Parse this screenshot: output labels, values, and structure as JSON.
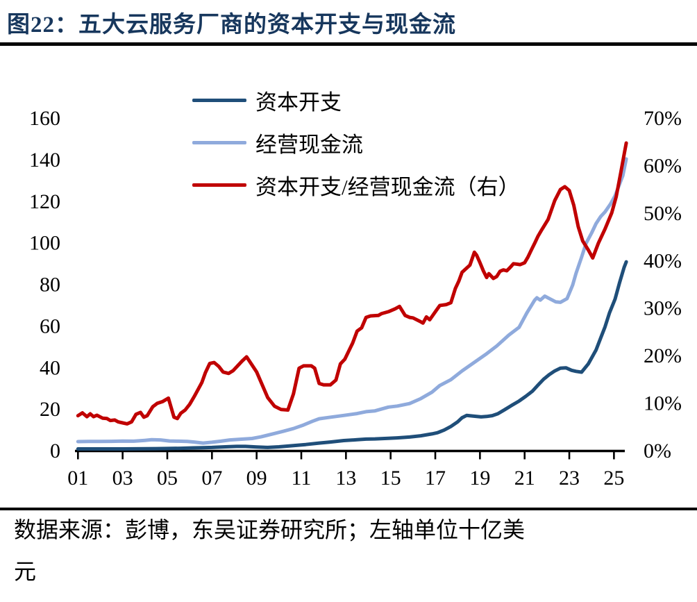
{
  "header": {
    "figure_title": "图22：五大云服务厂商的资本开支与现金流"
  },
  "legend": {
    "items": [
      {
        "label": "资本开支",
        "color": "#1F4E79"
      },
      {
        "label": "经营现金流",
        "color": "#8FAADC"
      },
      {
        "label": "资本开支/经营现金流（右）",
        "color": "#C00000"
      }
    ]
  },
  "chart_data": {
    "type": "line",
    "title": "图22：五大云服务厂商的资本开支与现金流",
    "grid": false,
    "legend_position": "top-center",
    "x_axis": {
      "range": [
        2000.9,
        2025.6
      ],
      "ticks": [
        {
          "label": "01",
          "year": 2001
        },
        {
          "label": "03",
          "year": 2003
        },
        {
          "label": "05",
          "year": 2005
        },
        {
          "label": "07",
          "year": 2007
        },
        {
          "label": "09",
          "year": 2009
        },
        {
          "label": "11",
          "year": 2011
        },
        {
          "label": "13",
          "year": 2013
        },
        {
          "label": "15",
          "year": 2015
        },
        {
          "label": "17",
          "year": 2017
        },
        {
          "label": "19",
          "year": 2019
        },
        {
          "label": "21",
          "year": 2021
        },
        {
          "label": "23",
          "year": 2023
        },
        {
          "label": "25",
          "year": 2025
        }
      ]
    },
    "left_axis": {
      "range": [
        0,
        160
      ],
      "ticks": [
        0,
        20,
        40,
        60,
        80,
        100,
        120,
        140,
        160
      ],
      "unit_note": "左轴单位十亿美元"
    },
    "right_axis": {
      "range": [
        0,
        70
      ],
      "ticks": [
        0,
        10,
        20,
        30,
        40,
        50,
        60,
        70
      ],
      "format": "percent"
    },
    "series": [
      {
        "name": "资本开支",
        "axis": "left",
        "color": "#1F4E79",
        "points": [
          [
            2001.0,
            0.5
          ],
          [
            2001.5,
            0.5
          ],
          [
            2002.0,
            0.5
          ],
          [
            2002.5,
            0.5
          ],
          [
            2003.0,
            0.5
          ],
          [
            2003.5,
            0.55
          ],
          [
            2004.0,
            0.6
          ],
          [
            2004.5,
            0.65
          ],
          [
            2005.0,
            0.7
          ],
          [
            2005.6,
            0.8
          ],
          [
            2006.2,
            1.0
          ],
          [
            2006.6,
            1.1
          ],
          [
            2007.0,
            1.2
          ],
          [
            2007.6,
            1.5
          ],
          [
            2008.1,
            1.7
          ],
          [
            2008.5,
            1.7
          ],
          [
            2009.0,
            1.4
          ],
          [
            2009.5,
            1.2
          ],
          [
            2010.0,
            1.5
          ],
          [
            2010.65,
            2.1
          ],
          [
            2011.2,
            2.6
          ],
          [
            2011.8,
            3.3
          ],
          [
            2012.3,
            3.8
          ],
          [
            2012.9,
            4.5
          ],
          [
            2013.5,
            4.9
          ],
          [
            2013.9,
            5.2
          ],
          [
            2014.3,
            5.3
          ],
          [
            2014.9,
            5.6
          ],
          [
            2015.3,
            5.8
          ],
          [
            2015.85,
            6.2
          ],
          [
            2016.35,
            6.8
          ],
          [
            2016.85,
            7.7
          ],
          [
            2017.1,
            8.3
          ],
          [
            2017.4,
            9.6
          ],
          [
            2017.7,
            11.3
          ],
          [
            2018.0,
            13.5
          ],
          [
            2018.2,
            15.5
          ],
          [
            2018.4,
            16.6
          ],
          [
            2018.7,
            16.3
          ],
          [
            2019.05,
            15.9
          ],
          [
            2019.3,
            16.1
          ],
          [
            2019.55,
            16.5
          ],
          [
            2019.8,
            17.4
          ],
          [
            2020.1,
            19.3
          ],
          [
            2020.4,
            21.3
          ],
          [
            2020.75,
            23.5
          ],
          [
            2021.05,
            25.8
          ],
          [
            2021.35,
            28.3
          ],
          [
            2021.6,
            31.2
          ],
          [
            2021.85,
            34.0
          ],
          [
            2022.1,
            36.2
          ],
          [
            2022.35,
            38.0
          ],
          [
            2022.6,
            39.3
          ],
          [
            2022.85,
            39.5
          ],
          [
            2023.1,
            38.3
          ],
          [
            2023.3,
            37.8
          ],
          [
            2023.55,
            37.4
          ],
          [
            2023.85,
            41.4
          ],
          [
            2024.2,
            48.1
          ],
          [
            2024.4,
            53.7
          ],
          [
            2024.6,
            59.2
          ],
          [
            2024.8,
            65.9
          ],
          [
            2025.05,
            72.6
          ],
          [
            2025.25,
            80.4
          ],
          [
            2025.45,
            87.7
          ],
          [
            2025.55,
            90.5
          ]
        ]
      },
      {
        "name": "经营现金流",
        "axis": "left",
        "color": "#8FAADC",
        "points": [
          [
            2001.0,
            4.0
          ],
          [
            2001.5,
            4.1
          ],
          [
            2002.0,
            4.1
          ],
          [
            2002.5,
            4.15
          ],
          [
            2003.0,
            4.25
          ],
          [
            2003.5,
            4.2
          ],
          [
            2004.0,
            4.6
          ],
          [
            2004.3,
            4.9
          ],
          [
            2004.7,
            4.8
          ],
          [
            2005.1,
            4.3
          ],
          [
            2005.5,
            4.2
          ],
          [
            2005.9,
            4.1
          ],
          [
            2006.2,
            3.8
          ],
          [
            2006.6,
            3.3
          ],
          [
            2007.0,
            3.7
          ],
          [
            2007.4,
            4.2
          ],
          [
            2007.8,
            4.8
          ],
          [
            2008.2,
            5.1
          ],
          [
            2008.8,
            5.5
          ],
          [
            2009.2,
            6.3
          ],
          [
            2009.8,
            7.9
          ],
          [
            2010.2,
            9.0
          ],
          [
            2010.65,
            10.3
          ],
          [
            2011.1,
            12.0
          ],
          [
            2011.5,
            13.8
          ],
          [
            2011.8,
            15.0
          ],
          [
            2012.2,
            15.6
          ],
          [
            2012.9,
            16.6
          ],
          [
            2013.5,
            17.5
          ],
          [
            2013.9,
            18.4
          ],
          [
            2014.3,
            18.8
          ],
          [
            2014.9,
            20.6
          ],
          [
            2015.3,
            21.1
          ],
          [
            2015.85,
            22.3
          ],
          [
            2016.35,
            24.7
          ],
          [
            2016.85,
            27.8
          ],
          [
            2017.2,
            31.0
          ],
          [
            2017.7,
            33.8
          ],
          [
            2018.2,
            38.0
          ],
          [
            2018.7,
            41.8
          ],
          [
            2019.25,
            45.9
          ],
          [
            2019.75,
            50.0
          ],
          [
            2020.3,
            55.3
          ],
          [
            2020.75,
            59.0
          ],
          [
            2021.1,
            65.9
          ],
          [
            2021.45,
            72.1
          ],
          [
            2021.55,
            73.2
          ],
          [
            2021.7,
            72.1
          ],
          [
            2021.9,
            74.0
          ],
          [
            2022.15,
            72.6
          ],
          [
            2022.4,
            71.2
          ],
          [
            2022.6,
            71.0
          ],
          [
            2022.9,
            72.8
          ],
          [
            2023.15,
            79.3
          ],
          [
            2023.3,
            84.9
          ],
          [
            2023.55,
            92.7
          ],
          [
            2023.75,
            99.4
          ],
          [
            2024.0,
            104.4
          ],
          [
            2024.2,
            108.9
          ],
          [
            2024.4,
            112.2
          ],
          [
            2024.6,
            114.5
          ],
          [
            2024.85,
            118.4
          ],
          [
            2025.05,
            122.3
          ],
          [
            2025.25,
            127.8
          ],
          [
            2025.4,
            132.0
          ],
          [
            2025.55,
            140.0
          ]
        ]
      },
      {
        "name": "资本开支/经营现金流（右）",
        "axis": "right",
        "color": "#C00000",
        "points": [
          [
            2001.0,
            7.2
          ],
          [
            2001.2,
            7.8
          ],
          [
            2001.4,
            7.0
          ],
          [
            2001.55,
            7.6
          ],
          [
            2001.7,
            7.0
          ],
          [
            2001.85,
            7.3
          ],
          [
            2002.1,
            6.7
          ],
          [
            2002.3,
            6.6
          ],
          [
            2002.45,
            6.2
          ],
          [
            2002.65,
            6.3
          ],
          [
            2002.8,
            5.9
          ],
          [
            2003.0,
            5.7
          ],
          [
            2003.2,
            5.5
          ],
          [
            2003.4,
            5.9
          ],
          [
            2003.6,
            7.5
          ],
          [
            2003.8,
            7.9
          ],
          [
            2003.95,
            6.9
          ],
          [
            2004.1,
            7.2
          ],
          [
            2004.35,
            9.1
          ],
          [
            2004.55,
            9.8
          ],
          [
            2004.8,
            10.2
          ],
          [
            2005.05,
            10.9
          ],
          [
            2005.3,
            6.9
          ],
          [
            2005.45,
            6.6
          ],
          [
            2005.6,
            7.7
          ],
          [
            2005.8,
            8.4
          ],
          [
            2006.0,
            9.6
          ],
          [
            2006.2,
            11.2
          ],
          [
            2006.4,
            12.9
          ],
          [
            2006.55,
            14.2
          ],
          [
            2006.7,
            16.2
          ],
          [
            2006.9,
            18.2
          ],
          [
            2007.1,
            18.4
          ],
          [
            2007.3,
            17.6
          ],
          [
            2007.5,
            16.4
          ],
          [
            2007.75,
            16.1
          ],
          [
            2007.95,
            16.7
          ],
          [
            2008.15,
            17.7
          ],
          [
            2008.35,
            18.7
          ],
          [
            2008.55,
            19.6
          ],
          [
            2008.75,
            18.2
          ],
          [
            2009.0,
            16.4
          ],
          [
            2009.25,
            13.7
          ],
          [
            2009.5,
            11.0
          ],
          [
            2009.8,
            9.2
          ],
          [
            2010.1,
            8.5
          ],
          [
            2010.4,
            8.4
          ],
          [
            2010.65,
            11.8
          ],
          [
            2010.9,
            17.2
          ],
          [
            2011.1,
            17.7
          ],
          [
            2011.45,
            17.7
          ],
          [
            2011.6,
            17.2
          ],
          [
            2011.8,
            14.0
          ],
          [
            2012.0,
            13.7
          ],
          [
            2012.3,
            13.7
          ],
          [
            2012.55,
            14.7
          ],
          [
            2012.75,
            18.1
          ],
          [
            2012.95,
            19.1
          ],
          [
            2013.3,
            22.5
          ],
          [
            2013.5,
            25.0
          ],
          [
            2013.7,
            25.7
          ],
          [
            2013.9,
            27.9
          ],
          [
            2014.1,
            28.2
          ],
          [
            2014.45,
            28.3
          ],
          [
            2014.6,
            28.7
          ],
          [
            2014.9,
            29.1
          ],
          [
            2015.2,
            29.7
          ],
          [
            2015.4,
            30.2
          ],
          [
            2015.65,
            28.3
          ],
          [
            2015.85,
            27.9
          ],
          [
            2016.0,
            27.8
          ],
          [
            2016.3,
            27.1
          ],
          [
            2016.45,
            26.7
          ],
          [
            2016.6,
            28.0
          ],
          [
            2016.75,
            27.4
          ],
          [
            2017.05,
            29.4
          ],
          [
            2017.2,
            30.4
          ],
          [
            2017.5,
            30.6
          ],
          [
            2017.7,
            31.0
          ],
          [
            2017.9,
            34.0
          ],
          [
            2018.05,
            35.5
          ],
          [
            2018.2,
            37.4
          ],
          [
            2018.55,
            38.9
          ],
          [
            2018.75,
            41.6
          ],
          [
            2018.85,
            41.0
          ],
          [
            2019.0,
            39.4
          ],
          [
            2019.15,
            37.7
          ],
          [
            2019.3,
            36.3
          ],
          [
            2019.4,
            37.1
          ],
          [
            2019.6,
            36.1
          ],
          [
            2019.75,
            36.5
          ],
          [
            2019.9,
            37.6
          ],
          [
            2020.05,
            37.9
          ],
          [
            2020.2,
            37.7
          ],
          [
            2020.35,
            38.4
          ],
          [
            2020.5,
            39.2
          ],
          [
            2020.65,
            39.1
          ],
          [
            2020.8,
            39.0
          ],
          [
            2021.0,
            39.4
          ],
          [
            2021.15,
            40.6
          ],
          [
            2021.3,
            42.1
          ],
          [
            2021.45,
            43.5
          ],
          [
            2021.6,
            45.0
          ],
          [
            2021.75,
            46.2
          ],
          [
            2022.05,
            48.5
          ],
          [
            2022.35,
            52.5
          ],
          [
            2022.6,
            54.8
          ],
          [
            2022.8,
            55.4
          ],
          [
            2023.0,
            54.6
          ],
          [
            2023.2,
            51.5
          ],
          [
            2023.4,
            47.0
          ],
          [
            2023.6,
            44.0
          ],
          [
            2023.85,
            42.1
          ],
          [
            2024.05,
            40.4
          ],
          [
            2024.3,
            43.5
          ],
          [
            2024.6,
            46.5
          ],
          [
            2024.9,
            49.9
          ],
          [
            2025.1,
            53.3
          ],
          [
            2025.3,
            58.2
          ],
          [
            2025.45,
            62.1
          ],
          [
            2025.55,
            64.6
          ]
        ]
      }
    ]
  },
  "footer": {
    "lines": [
      "数据来源：彭博，东吴证券研究所；左轴单位十亿美",
      "元"
    ]
  }
}
